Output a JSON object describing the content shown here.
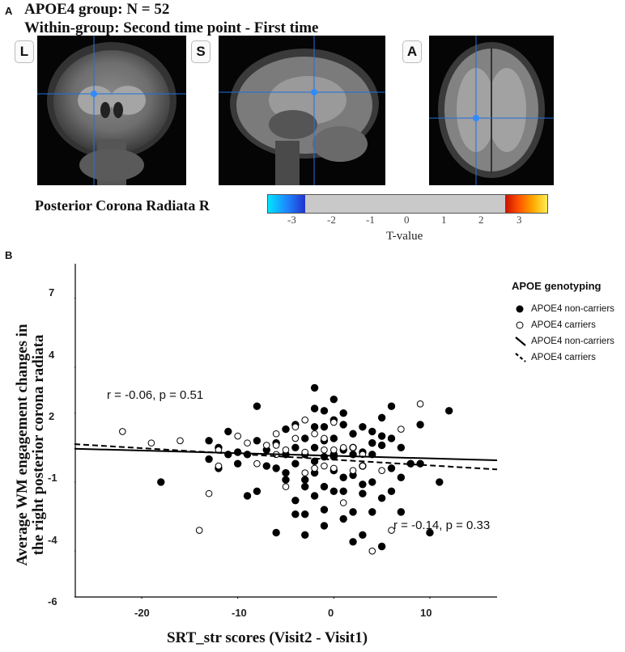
{
  "panel_a": {
    "label": "A",
    "title_line1": "APOE4 group: N = 52",
    "title_line2": "Within-group: Second time point - First time",
    "views": [
      "L",
      "S",
      "A"
    ],
    "region": "Posterior Corona Radiata R",
    "colorbar": {
      "ticks": [
        "-3",
        "-2",
        "-1",
        "0",
        "1",
        "2",
        "3"
      ],
      "label": "T-value",
      "negative_colors": [
        "#00e5ff",
        "#1e88ff",
        "#2233cc"
      ],
      "positive_colors": [
        "#cc1100",
        "#ff5500",
        "#ffaa00",
        "#ffee55"
      ]
    }
  },
  "panel_b": {
    "label": "B",
    "legend": {
      "title": "APOE genotyping",
      "items": [
        "APOE4 non-carriers",
        "APOE4 carriers",
        "APOE4 non-carriers",
        "APOE4 carriers"
      ]
    },
    "annotations": {
      "noncarriers": "r = -0.06, p = 0.51",
      "carriers": "r = -0.14, p = 0.33"
    },
    "chart_data": {
      "type": "scatter",
      "xlabel": "SRT_str scores (Visit2 - Visit1)",
      "ylabel_line1": "Average WM engagement changes in",
      "ylabel_line2": "the right posterior corona radiata",
      "xlim": [
        -27,
        17
      ],
      "ylim": [
        -6,
        8.5
      ],
      "x_ticks": [
        -20,
        -10,
        0,
        10
      ],
      "x_tick_labels": [
        "-20",
        "-10",
        "0",
        "10"
      ],
      "y_ticks": [
        7,
        4,
        2,
        -1,
        -4,
        -6
      ],
      "y_tick_labels": [
        "7",
        "4",
        "2",
        "-1",
        "-4",
        "-6"
      ],
      "series": [
        {
          "name": "APOE4 non-carriers",
          "marker": "filled",
          "x": [
            -18,
            -13,
            -13,
            -12,
            -12,
            -11,
            -11,
            -10,
            -10,
            -9,
            -9,
            -8,
            -8,
            -8,
            -7,
            -7,
            -6,
            -6,
            -6,
            -5,
            -5,
            -5,
            -4,
            -4,
            -4,
            -4,
            -3,
            -3,
            -3,
            -3,
            -3,
            -2,
            -2,
            -2,
            -2,
            -2,
            -2,
            -2,
            -1,
            -1,
            -1,
            -1,
            -1,
            -1,
            0,
            0,
            0,
            0,
            0,
            0,
            1,
            1,
            1,
            1,
            1,
            2,
            2,
            2,
            2,
            2,
            3,
            3,
            3,
            3,
            3,
            4,
            4,
            4,
            4,
            5,
            5,
            5,
            5,
            6,
            6,
            6,
            7,
            7,
            7,
            8,
            9,
            9,
            10,
            11,
            12,
            -1,
            1,
            3,
            -3,
            5,
            2,
            -4,
            6,
            4,
            -5,
            0
          ],
          "y": [
            -1,
            0,
            0.8,
            -0.4,
            0.5,
            1.2,
            0.2,
            -0.2,
            0.3,
            -1.6,
            0.2,
            -1.4,
            0.8,
            2.3,
            -0.3,
            0.4,
            -3.2,
            -0.4,
            0.7,
            -0.6,
            0.2,
            1.3,
            -1.8,
            -0.2,
            0.5,
            1.5,
            -3.3,
            -2.4,
            -0.9,
            0.2,
            0.9,
            3.1,
            2.2,
            1.4,
            0.5,
            -0.1,
            -0.6,
            -1.6,
            -2.2,
            -1.2,
            0.1,
            0.8,
            2.1,
            1.4,
            2.6,
            1.7,
            0.9,
            0.2,
            -0.5,
            -1.4,
            -2.6,
            -0.8,
            0.4,
            1.5,
            2,
            -3.6,
            -2.3,
            0.2,
            1.1,
            0.5,
            -3.3,
            -1.1,
            0.3,
            1.4,
            -0.3,
            -2.3,
            -1,
            0.2,
            1.2,
            -3.8,
            -1.7,
            0.6,
            1.8,
            -0.4,
            0.9,
            2.3,
            -2.3,
            -0.8,
            0.5,
            -0.2,
            -0.2,
            1.5,
            -3.2,
            -1,
            2.1,
            -2.9,
            -1.4,
            -1.5,
            -1.2,
            1,
            -0.7,
            -2.4,
            -1.4,
            0.7,
            -0.9,
            0.1
          ],
          "fit": {
            "x": [
              -27,
              17
            ],
            "y": [
              0.45,
              -0.05
            ]
          }
        },
        {
          "name": "APOE4 carriers",
          "marker": "open",
          "x": [
            -22,
            -19,
            -16,
            -14,
            -13,
            -12,
            -12,
            -10,
            -9,
            -8,
            -7,
            -6,
            -6,
            -5,
            -5,
            -4,
            -4,
            -3,
            -3,
            -3,
            -2,
            -2,
            -1,
            -1,
            -1,
            0,
            0,
            0,
            1,
            1,
            2,
            2,
            3,
            4,
            5,
            6,
            7,
            9,
            -6,
            3
          ],
          "y": [
            1.2,
            0.7,
            0.8,
            -3.1,
            -1.5,
            0.4,
            -0.3,
            1,
            0.7,
            -0.2,
            0.6,
            0.2,
            0.6,
            -1.2,
            0.4,
            1.4,
            0.9,
            1.7,
            0.3,
            -0.6,
            1.1,
            -0.4,
            0.9,
            0.4,
            -0.3,
            1.6,
            0.4,
            -0.4,
            0.5,
            -1.9,
            0.5,
            -0.5,
            -0.3,
            -4,
            -0.5,
            -3.1,
            1.3,
            2.4,
            1.1,
            0.2
          ],
          "fit": {
            "x": [
              -27,
              17
            ],
            "y": [
              0.65,
              -0.45
            ]
          }
        }
      ]
    }
  }
}
